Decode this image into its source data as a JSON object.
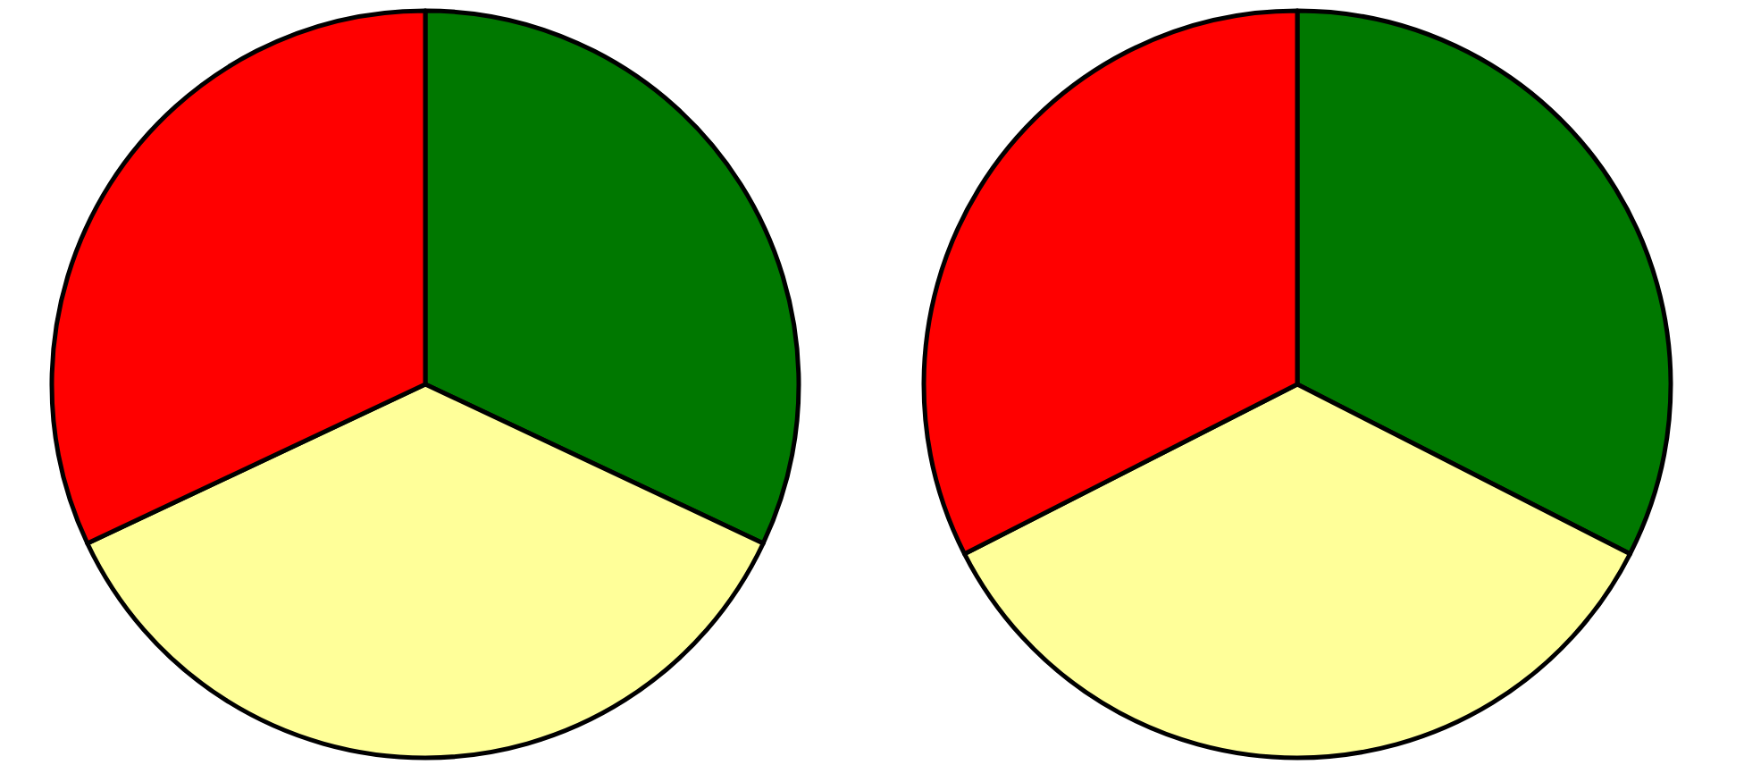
{
  "chart_data": [
    {
      "type": "pie",
      "categories": [
        null,
        null,
        null
      ],
      "values": [
        32,
        36,
        32
      ],
      "colors": [
        "#007800",
        "#ffff99",
        "#ff0000"
      ]
    },
    {
      "type": "pie",
      "categories": [
        null,
        null,
        null
      ],
      "values": [
        32.5,
        35,
        32.5
      ],
      "colors": [
        "#007800",
        "#ffff99",
        "#ff0000"
      ]
    }
  ]
}
